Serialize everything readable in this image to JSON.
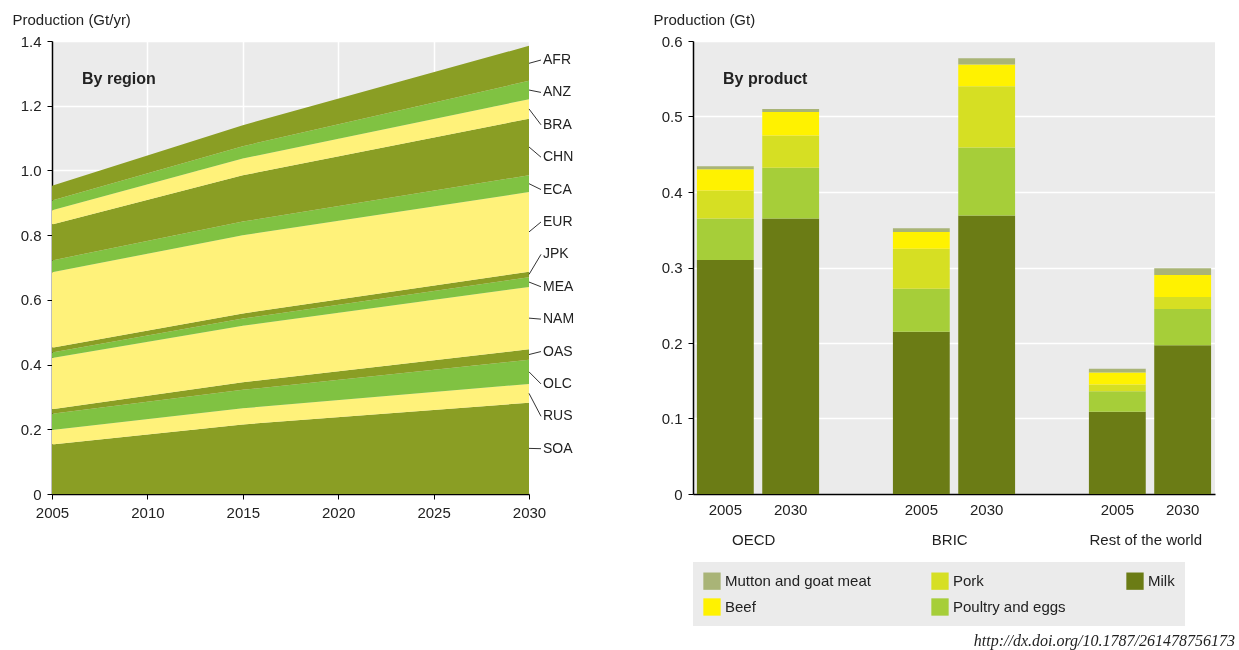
{
  "chart_data": [
    {
      "type": "area",
      "title": "By region",
      "ylabel": "Production (Gt/yr)",
      "stacked": true,
      "grid": true,
      "x": [
        2005,
        2015,
        2030
      ],
      "xlim": [
        2005,
        2030
      ],
      "xticks": [
        2005,
        2010,
        2015,
        2020,
        2025,
        2030
      ],
      "ylim": [
        0,
        1.4
      ],
      "yticks": [
        0,
        0.2,
        0.4,
        0.6,
        0.8,
        {
          "value": 1,
          "label": "1.0"
        },
        1.2,
        1.4
      ],
      "series": [
        {
          "name": "SOA",
          "color": "#8a9e24",
          "values": [
            0.153,
            0.215,
            0.282
          ]
        },
        {
          "name": "RUS",
          "color": "#fff27a",
          "values": [
            0.045,
            0.05,
            0.058
          ]
        },
        {
          "name": "OLC",
          "color": "#80c242",
          "values": [
            0.05,
            0.057,
            0.075
          ]
        },
        {
          "name": "OAS",
          "color": "#8a9e24",
          "values": [
            0.014,
            0.023,
            0.032
          ]
        },
        {
          "name": "NAM",
          "color": "#fff27a",
          "values": [
            0.158,
            0.175,
            0.193
          ]
        },
        {
          "name": "MEA",
          "color": "#80c242",
          "values": [
            0.017,
            0.022,
            0.03
          ]
        },
        {
          "name": "JPK",
          "color": "#8a9e24",
          "values": [
            0.015,
            0.016,
            0.017
          ]
        },
        {
          "name": "EUR",
          "color": "#fff27a",
          "values": [
            0.233,
            0.242,
            0.246
          ]
        },
        {
          "name": "ECA",
          "color": "#80c242",
          "values": [
            0.037,
            0.042,
            0.052
          ]
        },
        {
          "name": "CHN",
          "color": "#8a9e24",
          "values": [
            0.111,
            0.143,
            0.175
          ]
        },
        {
          "name": "BRA",
          "color": "#fff27a",
          "values": [
            0.044,
            0.052,
            0.06
          ]
        },
        {
          "name": "ANZ",
          "color": "#80c242",
          "values": [
            0.03,
            0.038,
            0.057
          ]
        },
        {
          "name": "AFR",
          "color": "#8a9e24",
          "values": [
            0.046,
            0.065,
            0.108
          ]
        }
      ]
    },
    {
      "type": "bar",
      "title": "By product",
      "ylabel": "Production (Gt)",
      "stacked": true,
      "grid": "y",
      "legend": "bottom",
      "categories": [
        "2005",
        "2030",
        null,
        "2005",
        "2030",
        null,
        "2005",
        "2030"
      ],
      "ylim": [
        0,
        0.6
      ],
      "yticks": [
        0,
        0.1,
        0.2,
        0.3,
        0.4,
        0.5,
        0.6
      ],
      "annotations": [
        "OECD",
        "BRIC",
        "Rest of the world",
        "http://dx.doi.org/10.1787/261478756173"
      ],
      "series": [
        {
          "name": "Milk",
          "color": "#6b7c15",
          "values": [
            0.31,
            0.365,
            null,
            0.215,
            0.369,
            null,
            0.109,
            0.197
          ]
        },
        {
          "name": "Poultry and eggs",
          "color": "#a6ce39",
          "values": [
            0.055,
            0.067,
            null,
            0.057,
            0.09,
            null,
            0.027,
            0.048
          ]
        },
        {
          "name": "Pork",
          "color": "#d6df23",
          "values": [
            0.037,
            0.043,
            null,
            0.053,
            0.081,
            null,
            0.009,
            0.016
          ]
        },
        {
          "name": "Beef",
          "color": "#fff200",
          "values": [
            0.028,
            0.031,
            null,
            0.022,
            0.029,
            null,
            0.016,
            0.029
          ]
        },
        {
          "name": "Mutton and goat meat",
          "color": "#a9b477",
          "values": [
            0.004,
            0.004,
            null,
            0.005,
            0.008,
            null,
            0.005,
            0.009
          ]
        }
      ]
    }
  ]
}
